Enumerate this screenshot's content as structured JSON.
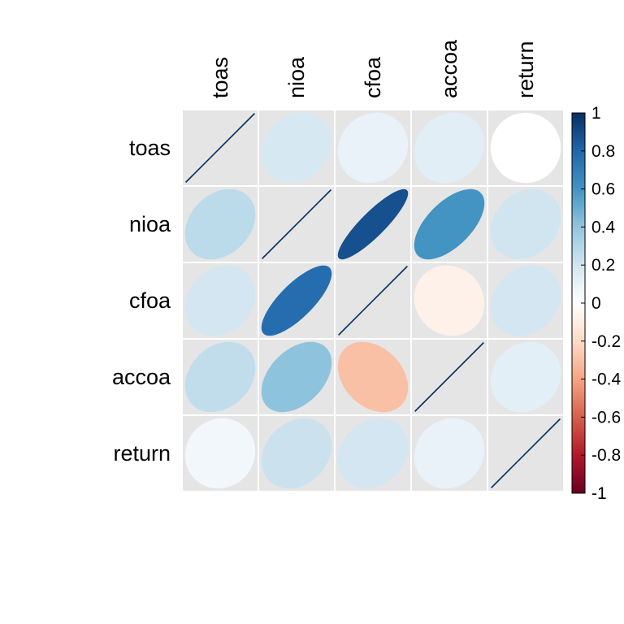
{
  "chart_data": {
    "type": "heatmap",
    "title": "",
    "variables": [
      "toas",
      "nioa",
      "cfoa",
      "accoa",
      "return"
    ],
    "matrix": [
      [
        1.0,
        0.18,
        0.1,
        0.13,
        0.0
      ],
      [
        0.27,
        1.0,
        0.88,
        0.6,
        0.2
      ],
      [
        0.19,
        0.77,
        1.0,
        -0.08,
        0.19
      ],
      [
        0.25,
        0.41,
        -0.3,
        1.0,
        0.12
      ],
      [
        0.06,
        0.22,
        0.19,
        0.1,
        1.0
      ]
    ],
    "colorbar": {
      "range": [
        -1,
        1
      ],
      "ticks": [
        "1",
        "0.8",
        "0.6",
        "0.4",
        "0.2",
        "0",
        "-0.2",
        "-0.4",
        "-0.6",
        "-0.8",
        "-1"
      ],
      "colors": [
        "#67001F",
        "#B2182B",
        "#D6604D",
        "#F4A582",
        "#FDDBC7",
        "#FFFFFF",
        "#D1E5F0",
        "#92C5DE",
        "#4393C3",
        "#2166AC",
        "#053061"
      ]
    },
    "cell_background": "#E5E5E5",
    "grid_line_color": "#FFFFFF"
  }
}
